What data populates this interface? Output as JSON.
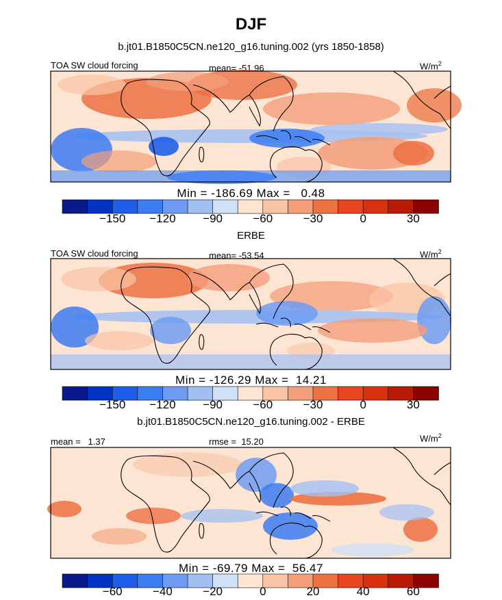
{
  "title": "DJF",
  "panels": [
    {
      "heading": "b.jt01.B1850C5CN.ne120_g16.tuning.002 (yrs 1850-1858)",
      "left_label": "TOA SW cloud forcing",
      "center_label": "mean= -51.96",
      "units_label": "W/m",
      "units_power": "2",
      "minmax": "Min = -186.69 Max =   0.48",
      "colorbar": {
        "colors": [
          "#0a1a8c",
          "#0033c4",
          "#1f5fe8",
          "#3d7df2",
          "#6f9cf2",
          "#a2bff2",
          "#cfe0f7",
          "#fde5d4",
          "#f9c4a6",
          "#f39f7a",
          "#ec7143",
          "#e8451e",
          "#d9300f",
          "#b81c06",
          "#8b0000"
        ],
        "ticks": [
          "-150",
          "-120",
          "-90",
          "-60",
          "-30",
          "0",
          "30"
        ]
      },
      "map": "model"
    },
    {
      "heading": "ERBE",
      "left_label": "TOA SW cloud forcing",
      "center_label": "mean= -53.54",
      "units_label": "W/m",
      "units_power": "2",
      "minmax": "Min = -126.29 Max =  14.21",
      "colorbar": {
        "colors": [
          "#0a1a8c",
          "#0033c4",
          "#1f5fe8",
          "#3d7df2",
          "#6f9cf2",
          "#a2bff2",
          "#cfe0f7",
          "#fde5d4",
          "#f9c4a6",
          "#f39f7a",
          "#ec7143",
          "#e8451e",
          "#d9300f",
          "#b81c06",
          "#8b0000"
        ],
        "ticks": [
          "-150",
          "-120",
          "-90",
          "-60",
          "-30",
          "0",
          "30"
        ]
      },
      "map": "obs"
    },
    {
      "heading": "b.jt01.B1850C5CN.ne120_g16.tuning.002 - ERBE",
      "left_label": "mean =   1.37",
      "center_label": "rmse =  15.20",
      "units_label": "W/m",
      "units_power": "2",
      "minmax": "Min = -69.79 Max =  56.47",
      "colorbar": {
        "colors": [
          "#0a1a8c",
          "#0033c4",
          "#1f5fe8",
          "#3d7df2",
          "#6f9cf2",
          "#a2bff2",
          "#cfe0f7",
          "#fde5d4",
          "#f9c4a6",
          "#f39f7a",
          "#ec7143",
          "#e8451e",
          "#d9300f",
          "#b81c06",
          "#8b0000"
        ],
        "ticks": [
          "-60",
          "-40",
          "-20",
          "0",
          "20",
          "40",
          "60"
        ]
      },
      "map": "diff"
    }
  ],
  "chart_data": [
    {
      "type": "heatmap",
      "title": "b.jt01.B1850C5CN.ne120_g16.tuning.002 (yrs 1850-1858)",
      "variable": "TOA SW cloud forcing",
      "units": "W/m2",
      "mean": -51.96,
      "min": -186.69,
      "max": 0.48,
      "color_levels": [
        -165,
        -150,
        -135,
        -120,
        -105,
        -90,
        -75,
        -60,
        -45,
        -30,
        -15,
        0,
        15,
        30,
        45
      ]
    },
    {
      "type": "heatmap",
      "title": "ERBE",
      "variable": "TOA SW cloud forcing",
      "units": "W/m2",
      "mean": -53.54,
      "min": -126.29,
      "max": 14.21,
      "color_levels": [
        -165,
        -150,
        -135,
        -120,
        -105,
        -90,
        -75,
        -60,
        -45,
        -30,
        -15,
        0,
        15,
        30,
        45
      ]
    },
    {
      "type": "heatmap",
      "title": "b.jt01.B1850C5CN.ne120_g16.tuning.002 - ERBE",
      "units": "W/m2",
      "mean": 1.37,
      "rmse": 15.2,
      "min": -69.79,
      "max": 56.47,
      "color_levels": [
        -70,
        -60,
        -50,
        -40,
        -30,
        -20,
        -10,
        0,
        10,
        20,
        30,
        40,
        50,
        60,
        70
      ]
    }
  ]
}
